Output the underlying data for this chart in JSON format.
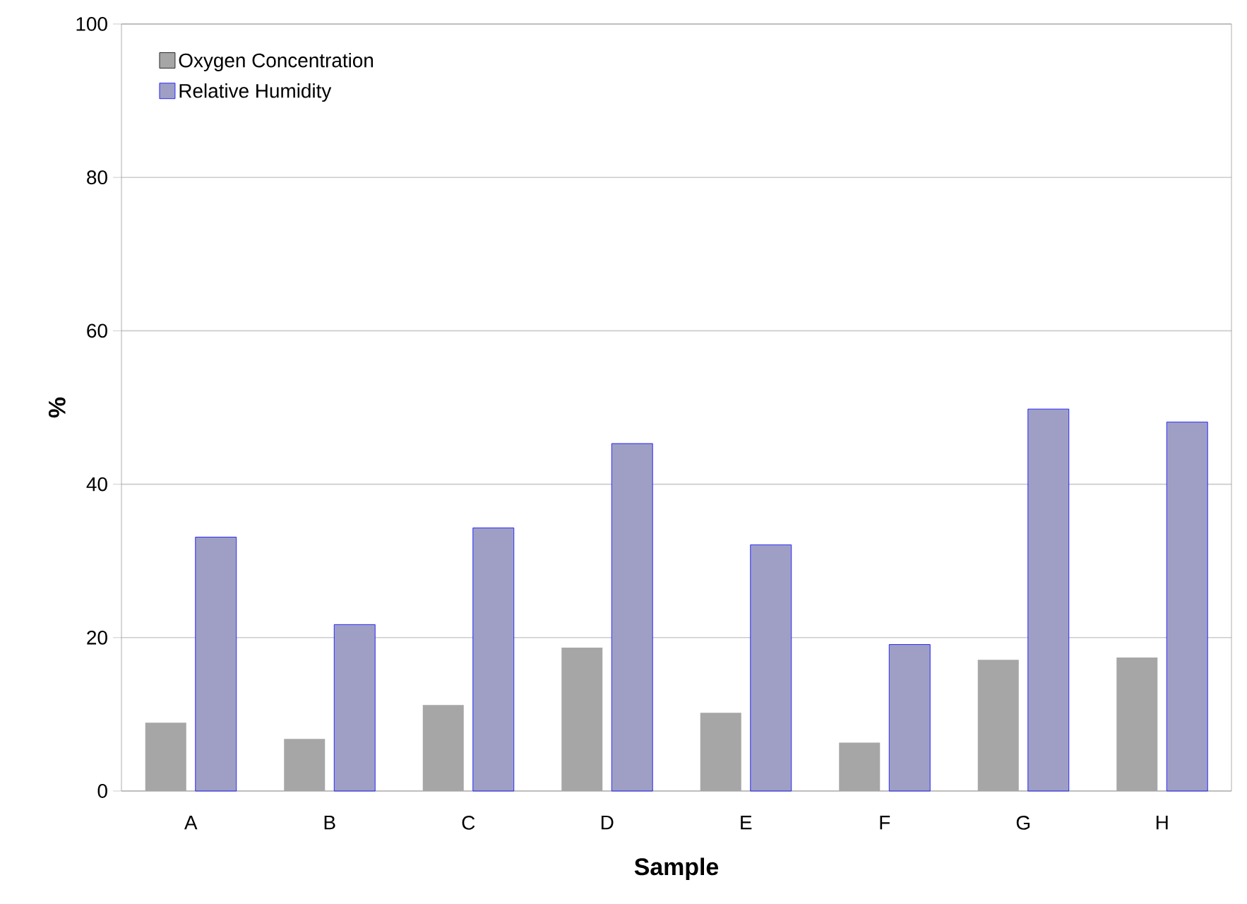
{
  "chart_data": {
    "type": "bar",
    "xlabel": "Sample",
    "ylabel": "%",
    "categories": [
      "A",
      "B",
      "C",
      "D",
      "E",
      "F",
      "G",
      "H"
    ],
    "series": [
      {
        "name": "Oxygen Concentration",
        "color": "#a6a6a6",
        "values": [
          8.9,
          6.8,
          11.2,
          18.7,
          10.2,
          6.3,
          17.1,
          17.4
        ]
      },
      {
        "name": "Relative Humidity",
        "color": "#9f9fc6",
        "values": [
          33.1,
          21.7,
          34.3,
          45.3,
          32.1,
          19.1,
          49.8,
          48.1
        ]
      }
    ],
    "ylim": [
      0,
      100
    ],
    "yticks": [
      0,
      20,
      40,
      60,
      80,
      100
    ],
    "grid": "y",
    "legend": "top left"
  }
}
